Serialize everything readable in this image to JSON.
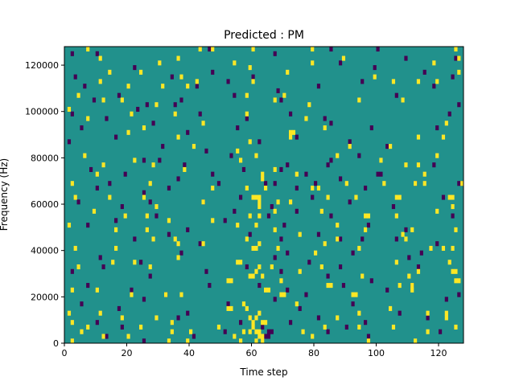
{
  "chart_data": {
    "type": "heatmap",
    "title": "Predicted : PM",
    "xlabel": "Time step",
    "ylabel": "Frequency (Hz)",
    "xlim": [
      0,
      128
    ],
    "ylim": [
      0,
      128000
    ],
    "x_ticks": [
      0,
      20,
      40,
      60,
      80,
      100,
      120
    ],
    "y_ticks": [
      0,
      20000,
      40000,
      60000,
      80000,
      100000,
      120000
    ],
    "x_tick_labels": [
      "0",
      "20",
      "40",
      "60",
      "80",
      "100",
      "120"
    ],
    "y_tick_labels": [
      "0",
      "20000",
      "40000",
      "60000",
      "80000",
      "100000",
      "120000"
    ],
    "n_time_steps": 128,
    "n_freq_bins": 64,
    "freq_bin_hz": 2000,
    "colormap": "viridis",
    "value_levels": [
      0,
      1,
      2
    ],
    "level_colors": [
      "#440154",
      "#21918c",
      "#fde725"
    ],
    "background_level": 1,
    "low_cells": [
      [
        2,
        62
      ],
      [
        10,
        62
      ],
      [
        46,
        63
      ],
      [
        67,
        62
      ],
      [
        85,
        63
      ],
      [
        100,
        63
      ],
      [
        125,
        61
      ],
      [
        3,
        57
      ],
      [
        22,
        59
      ],
      [
        34,
        57
      ],
      [
        47,
        58
      ],
      [
        52,
        56
      ],
      [
        60,
        57
      ],
      [
        88,
        60
      ],
      [
        99,
        59
      ],
      [
        109,
        61
      ],
      [
        115,
        58
      ],
      [
        124,
        57
      ],
      [
        6,
        55
      ],
      [
        17,
        53
      ],
      [
        26,
        51
      ],
      [
        37,
        52
      ],
      [
        42,
        55
      ],
      [
        54,
        53
      ],
      [
        68,
        54
      ],
      [
        81,
        55
      ],
      [
        95,
        56
      ],
      [
        118,
        55
      ],
      [
        2,
        49
      ],
      [
        9,
        52
      ],
      [
        23,
        50
      ],
      [
        35,
        51
      ],
      [
        43,
        49
      ],
      [
        69,
        52
      ],
      [
        83,
        48
      ],
      [
        106,
        53
      ],
      [
        126,
        51
      ],
      [
        5,
        46
      ],
      [
        13,
        48
      ],
      [
        28,
        47
      ],
      [
        39,
        45
      ],
      [
        58,
        48
      ],
      [
        72,
        49
      ],
      [
        85,
        47
      ],
      [
        98,
        46
      ],
      [
        123,
        49
      ],
      [
        1,
        43
      ],
      [
        16,
        44
      ],
      [
        31,
        42
      ],
      [
        45,
        41
      ],
      [
        55,
        46
      ],
      [
        74,
        44
      ],
      [
        91,
        43
      ],
      [
        103,
        42
      ],
      [
        119,
        46
      ],
      [
        25,
        39
      ],
      [
        30,
        39
      ],
      [
        38,
        38
      ],
      [
        53,
        40
      ],
      [
        62,
        43
      ],
      [
        71,
        38
      ],
      [
        84,
        38
      ],
      [
        85,
        39
      ],
      [
        94,
        40
      ],
      [
        118,
        38
      ],
      [
        8,
        37
      ],
      [
        19,
        36
      ],
      [
        36,
        35
      ],
      [
        47,
        36
      ],
      [
        57,
        37
      ],
      [
        69,
        37
      ],
      [
        77,
        36
      ],
      [
        88,
        35
      ],
      [
        100,
        36
      ],
      [
        101,
        36
      ],
      [
        10,
        33
      ],
      [
        14,
        34
      ],
      [
        25,
        32
      ],
      [
        33,
        33
      ],
      [
        49,
        34
      ],
      [
        56,
        31
      ],
      [
        64,
        34
      ],
      [
        67,
        34
      ],
      [
        74,
        33
      ],
      [
        80,
        34
      ],
      [
        96,
        33
      ],
      [
        112,
        34
      ],
      [
        126,
        34
      ],
      [
        127,
        34
      ],
      [
        4,
        30
      ],
      [
        18,
        29
      ],
      [
        27,
        30
      ],
      [
        44,
        30
      ],
      [
        54,
        28
      ],
      [
        66,
        29
      ],
      [
        74,
        28
      ],
      [
        79,
        31
      ],
      [
        91,
        30
      ],
      [
        105,
        29
      ],
      [
        121,
        31
      ],
      [
        7,
        25
      ],
      [
        16,
        26
      ],
      [
        29,
        27
      ],
      [
        39,
        24
      ],
      [
        51,
        26
      ],
      [
        65,
        27
      ],
      [
        70,
        25
      ],
      [
        85,
        27
      ],
      [
        97,
        25
      ],
      [
        109,
        24
      ],
      [
        124,
        27
      ],
      [
        22,
        22
      ],
      [
        33,
        23
      ],
      [
        43,
        21
      ],
      [
        59,
        23
      ],
      [
        69,
        22
      ],
      [
        81,
        23
      ],
      [
        88,
        22
      ],
      [
        95,
        22
      ],
      [
        106,
        22
      ],
      [
        119,
        21
      ],
      [
        11,
        18
      ],
      [
        24,
        17
      ],
      [
        37,
        19
      ],
      [
        60,
        20
      ],
      [
        67,
        18
      ],
      [
        71,
        19
      ],
      [
        78,
        17
      ],
      [
        92,
        19
      ],
      [
        110,
        18
      ],
      [
        114,
        19
      ],
      [
        2,
        15
      ],
      [
        12,
        16
      ],
      [
        27,
        14
      ],
      [
        45,
        15
      ],
      [
        58,
        16
      ],
      [
        69,
        15
      ],
      [
        84,
        14
      ],
      [
        88,
        16
      ],
      [
        98,
        13
      ],
      [
        113,
        16
      ],
      [
        7,
        12
      ],
      [
        21,
        11
      ],
      [
        32,
        10
      ],
      [
        46,
        12
      ],
      [
        62,
        12
      ],
      [
        71,
        11
      ],
      [
        77,
        10
      ],
      [
        89,
        12
      ],
      [
        103,
        11
      ],
      [
        111,
        12
      ],
      [
        126,
        10
      ],
      [
        5,
        8
      ],
      [
        17,
        7
      ],
      [
        25,
        9
      ],
      [
        39,
        6
      ],
      [
        52,
        8
      ],
      [
        67,
        9
      ],
      [
        75,
        7
      ],
      [
        92,
        8
      ],
      [
        107,
        6
      ],
      [
        122,
        9
      ],
      [
        10,
        4
      ],
      [
        18,
        3
      ],
      [
        36,
        5
      ],
      [
        56,
        4
      ],
      [
        63,
        3
      ],
      [
        65,
        2
      ],
      [
        66,
        2
      ],
      [
        72,
        4
      ],
      [
        81,
        5
      ],
      [
        90,
        3
      ],
      [
        96,
        4
      ],
      [
        116,
        5
      ],
      [
        13,
        1
      ],
      [
        25,
        0
      ],
      [
        41,
        1
      ],
      [
        51,
        2
      ],
      [
        64,
        1
      ],
      [
        65,
        1
      ],
      [
        84,
        2
      ],
      [
        97,
        1
      ],
      [
        120,
        2
      ]
    ],
    "high_cells": [
      [
        7,
        63
      ],
      [
        43,
        63
      ],
      [
        47,
        63
      ],
      [
        60,
        63
      ],
      [
        79,
        63
      ],
      [
        125,
        63
      ],
      [
        11,
        61
      ],
      [
        30,
        60
      ],
      [
        36,
        61
      ],
      [
        54,
        60
      ],
      [
        79,
        60
      ],
      [
        89,
        61
      ],
      [
        118,
        60
      ],
      [
        126,
        61
      ],
      [
        14,
        58
      ],
      [
        24,
        58
      ],
      [
        37,
        57
      ],
      [
        59,
        59
      ],
      [
        71,
        58
      ],
      [
        99,
        57
      ],
      [
        126,
        58
      ],
      [
        11,
        56
      ],
      [
        20,
        55
      ],
      [
        31,
        55
      ],
      [
        39,
        55
      ],
      [
        42,
        56
      ],
      [
        60,
        56
      ],
      [
        105,
        56
      ],
      [
        113,
        56
      ],
      [
        119,
        56
      ],
      [
        4,
        53
      ],
      [
        12,
        52
      ],
      [
        18,
        52
      ],
      [
        29,
        51
      ],
      [
        58,
        53
      ],
      [
        67,
        52
      ],
      [
        70,
        53
      ],
      [
        78,
        51
      ],
      [
        94,
        52
      ],
      [
        108,
        52
      ],
      [
        1,
        50
      ],
      [
        7,
        48
      ],
      [
        21,
        49
      ],
      [
        35,
        49
      ],
      [
        44,
        47
      ],
      [
        58,
        49
      ],
      [
        72,
        45
      ],
      [
        73,
        45
      ],
      [
        77,
        48
      ],
      [
        83,
        46
      ],
      [
        122,
        47
      ],
      [
        20,
        45
      ],
      [
        25,
        46
      ],
      [
        36,
        44
      ],
      [
        41,
        42
      ],
      [
        55,
        41
      ],
      [
        59,
        43
      ],
      [
        72,
        44
      ],
      [
        91,
        42
      ],
      [
        104,
        42
      ],
      [
        113,
        44
      ],
      [
        121,
        44
      ],
      [
        6,
        40
      ],
      [
        12,
        38
      ],
      [
        22,
        39
      ],
      [
        28,
        38
      ],
      [
        38,
        37
      ],
      [
        56,
        39
      ],
      [
        61,
        40
      ],
      [
        63,
        36
      ],
      [
        67,
        37
      ],
      [
        74,
        36
      ],
      [
        87,
        40
      ],
      [
        101,
        39
      ],
      [
        109,
        38
      ],
      [
        113,
        38
      ],
      [
        115,
        36
      ],
      [
        119,
        40
      ],
      [
        2,
        34
      ],
      [
        10,
        36
      ],
      [
        27,
        34
      ],
      [
        47,
        33
      ],
      [
        58,
        33
      ],
      [
        63,
        35
      ],
      [
        64,
        33
      ],
      [
        79,
        33
      ],
      [
        81,
        33
      ],
      [
        90,
        34
      ],
      [
        102,
        34
      ],
      [
        112,
        34
      ],
      [
        115,
        34
      ],
      [
        127,
        34
      ],
      [
        3,
        31
      ],
      [
        14,
        31
      ],
      [
        25,
        31
      ],
      [
        29,
        29
      ],
      [
        44,
        30
      ],
      [
        60,
        31
      ],
      [
        61,
        31
      ],
      [
        62,
        31
      ],
      [
        68,
        30
      ],
      [
        72,
        30
      ],
      [
        84,
        31
      ],
      [
        93,
        31
      ],
      [
        106,
        31
      ],
      [
        107,
        31
      ],
      [
        123,
        31
      ],
      [
        124,
        31
      ],
      [
        9,
        28
      ],
      [
        19,
        27
      ],
      [
        26,
        27
      ],
      [
        33,
        26
      ],
      [
        47,
        26
      ],
      [
        59,
        27
      ],
      [
        62,
        29
      ],
      [
        62,
        30
      ],
      [
        62,
        27
      ],
      [
        67,
        28
      ],
      [
        82,
        28
      ],
      [
        96,
        27
      ],
      [
        97,
        27
      ],
      [
        106,
        27
      ],
      [
        119,
        28
      ],
      [
        124,
        29
      ],
      [
        1,
        25
      ],
      [
        16,
        24
      ],
      [
        26,
        24
      ],
      [
        35,
        22
      ],
      [
        44,
        21
      ],
      [
        55,
        25
      ],
      [
        61,
        25
      ],
      [
        67,
        24
      ],
      [
        75,
        23
      ],
      [
        87,
        25
      ],
      [
        96,
        24
      ],
      [
        108,
        23
      ],
      [
        111,
        24
      ],
      [
        125,
        24
      ],
      [
        3,
        20
      ],
      [
        16,
        20
      ],
      [
        28,
        22
      ],
      [
        36,
        21
      ],
      [
        58,
        22
      ],
      [
        60,
        20
      ],
      [
        61,
        20
      ],
      [
        62,
        21
      ],
      [
        68,
        20
      ],
      [
        80,
        19
      ],
      [
        83,
        21
      ],
      [
        87,
        22
      ],
      [
        94,
        20
      ],
      [
        109,
        22
      ],
      [
        117,
        20
      ],
      [
        121,
        20
      ],
      [
        124,
        20
      ],
      [
        4,
        16
      ],
      [
        15,
        17
      ],
      [
        22,
        17
      ],
      [
        27,
        16
      ],
      [
        36,
        18
      ],
      [
        55,
        17
      ],
      [
        56,
        17
      ],
      [
        59,
        14
      ],
      [
        60,
        14
      ],
      [
        61,
        15
      ],
      [
        62,
        16
      ],
      [
        63,
        14
      ],
      [
        66,
        16
      ],
      [
        75,
        15
      ],
      [
        82,
        16
      ],
      [
        95,
        14
      ],
      [
        106,
        17
      ],
      [
        110,
        14
      ],
      [
        113,
        15
      ],
      [
        123,
        17
      ],
      [
        124,
        15
      ],
      [
        125,
        15
      ],
      [
        2,
        11
      ],
      [
        10,
        11
      ],
      [
        21,
        10
      ],
      [
        32,
        10
      ],
      [
        37,
        10
      ],
      [
        52,
        13
      ],
      [
        53,
        13
      ],
      [
        64,
        11
      ],
      [
        65,
        11
      ],
      [
        69,
        13
      ],
      [
        69,
        10
      ],
      [
        70,
        10
      ],
      [
        84,
        12
      ],
      [
        85,
        12
      ],
      [
        92,
        10
      ],
      [
        93,
        10
      ],
      [
        107,
        12
      ],
      [
        111,
        11
      ],
      [
        111,
        12
      ],
      [
        125,
        13
      ],
      [
        126,
        13
      ],
      [
        1,
        6
      ],
      [
        11,
        6
      ],
      [
        18,
        5
      ],
      [
        29,
        5
      ],
      [
        34,
        4
      ],
      [
        52,
        7
      ],
      [
        53,
        7
      ],
      [
        57,
        8
      ],
      [
        58,
        7
      ],
      [
        59,
        5
      ],
      [
        60,
        4
      ],
      [
        61,
        5
      ],
      [
        62,
        6
      ],
      [
        63,
        4
      ],
      [
        64,
        4
      ],
      [
        74,
        8
      ],
      [
        87,
        5
      ],
      [
        94,
        6
      ],
      [
        104,
        7
      ],
      [
        116,
        6
      ],
      [
        122,
        5
      ],
      [
        122,
        6
      ],
      [
        2,
        4
      ],
      [
        7,
        3
      ],
      [
        24,
        3
      ],
      [
        34,
        2
      ],
      [
        40,
        2
      ],
      [
        49,
        3
      ],
      [
        57,
        2
      ],
      [
        59,
        2
      ],
      [
        60,
        3
      ],
      [
        61,
        2
      ],
      [
        62,
        2
      ],
      [
        63,
        1
      ],
      [
        76,
        2
      ],
      [
        83,
        3
      ],
      [
        94,
        3
      ],
      [
        105,
        3
      ],
      [
        116,
        2
      ],
      [
        125,
        3
      ],
      [
        2,
        0
      ],
      [
        5,
        2
      ],
      [
        12,
        1
      ],
      [
        20,
        1
      ],
      [
        33,
        0
      ],
      [
        39,
        0
      ],
      [
        54,
        1
      ],
      [
        56,
        0
      ],
      [
        61,
        0
      ],
      [
        62,
        1
      ],
      [
        63,
        0
      ],
      [
        79,
        1
      ],
      [
        97,
        0
      ],
      [
        112,
        0
      ]
    ]
  }
}
